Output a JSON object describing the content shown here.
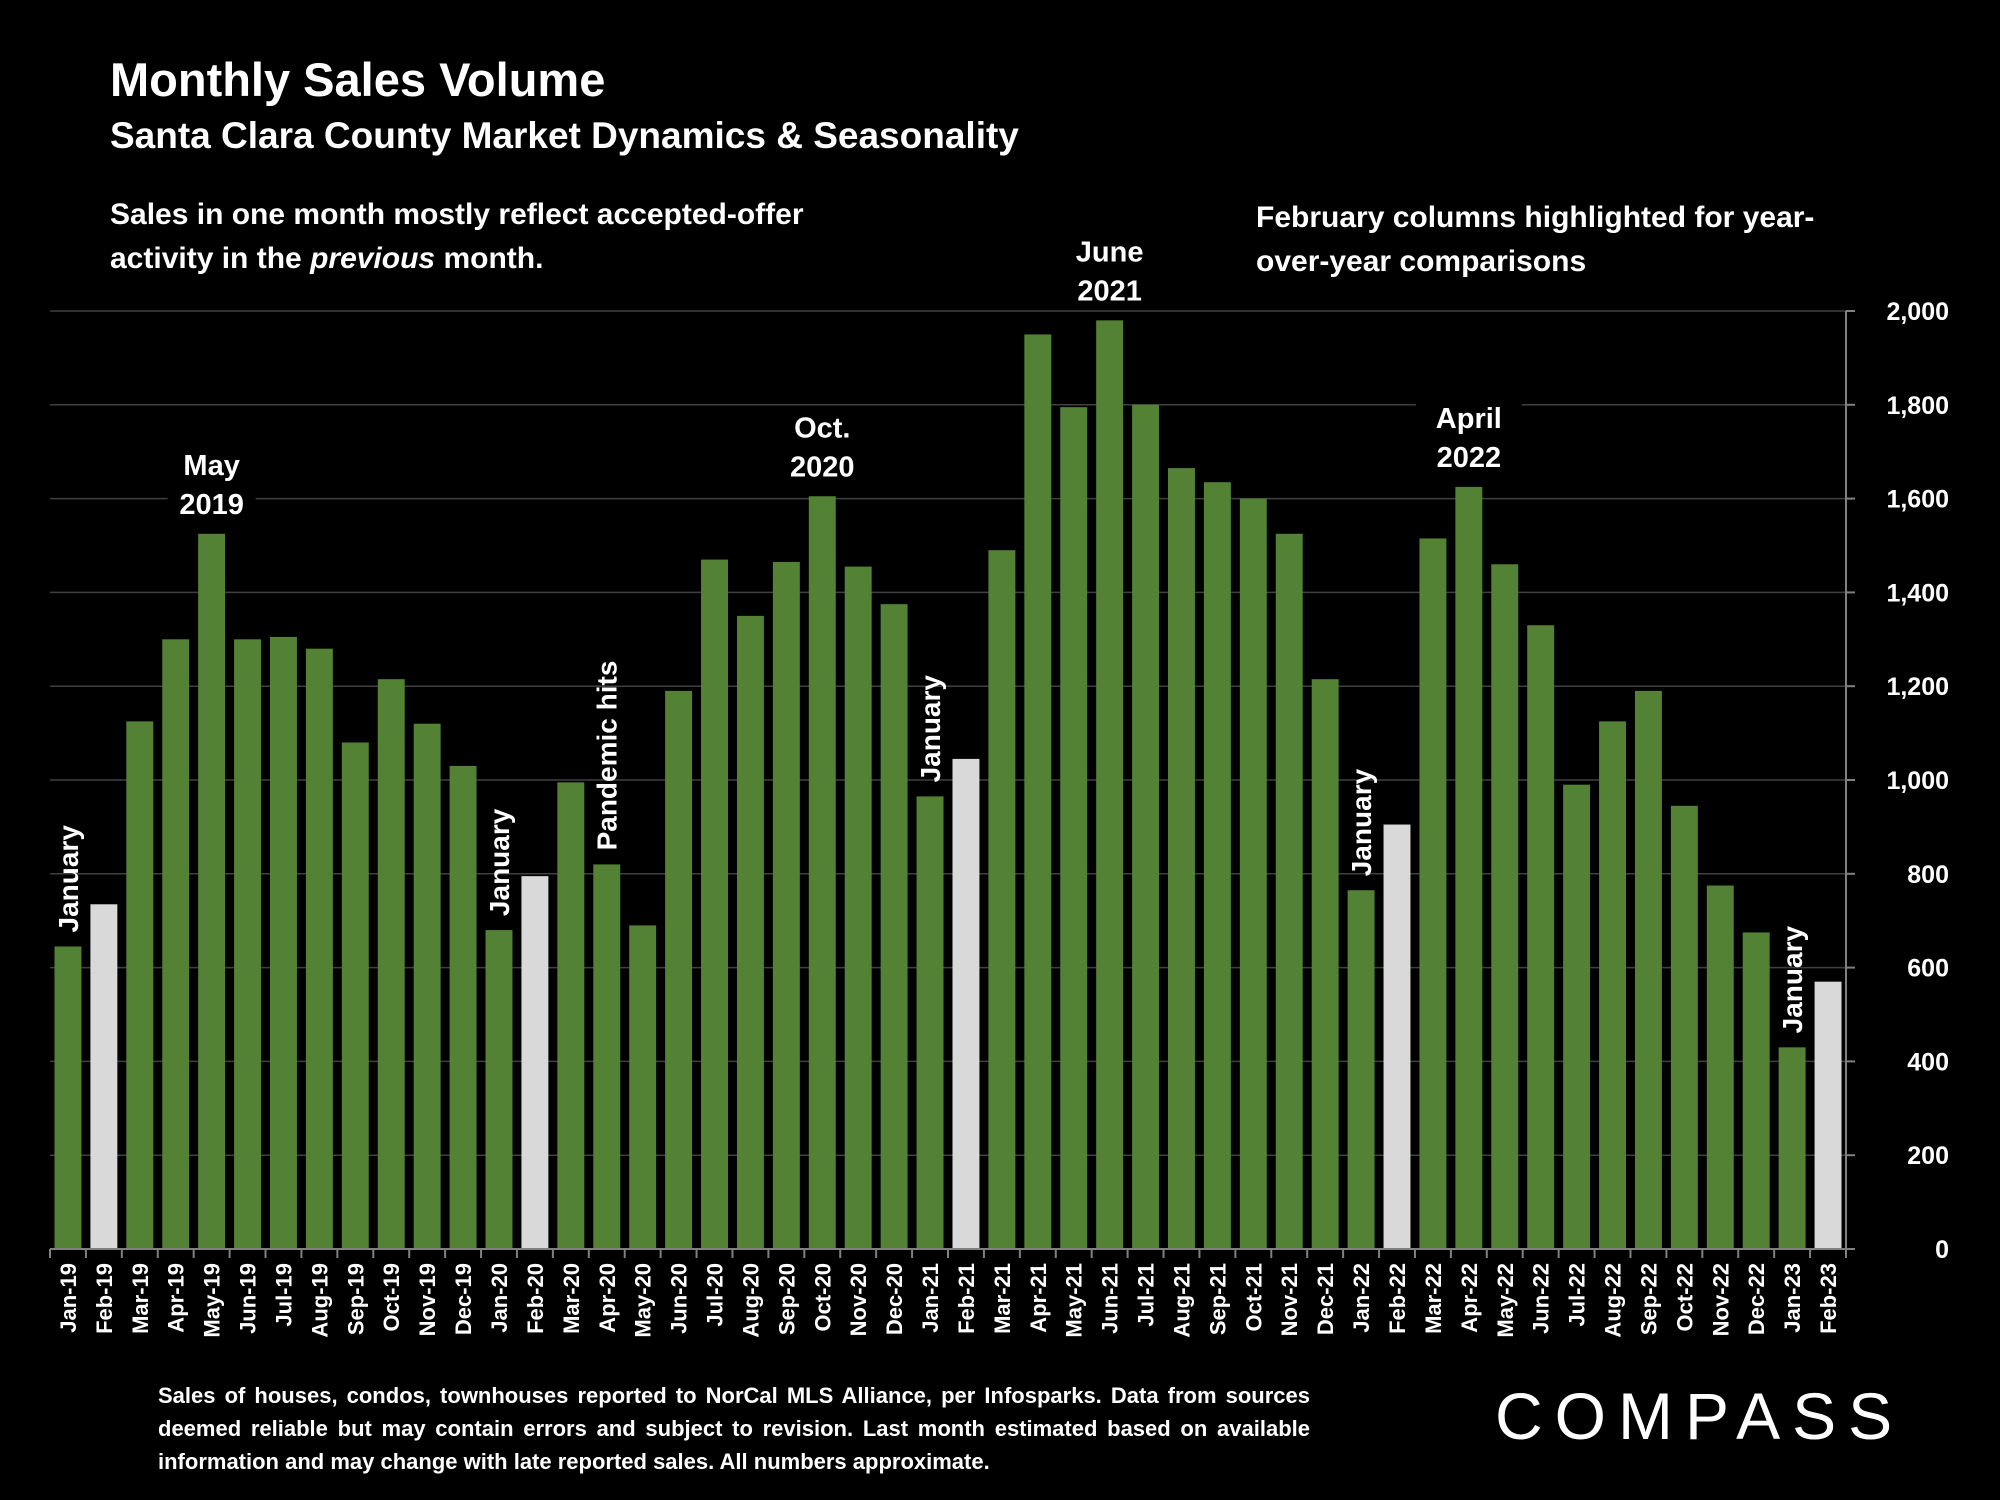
{
  "header": {
    "title": "Monthly Sales Volume",
    "subtitle": "Santa Clara County Market Dynamics & Seasonality"
  },
  "notes": {
    "left_part1": "Sales in one month mostly reflect accepted-offer activity in the ",
    "left_italic": "previous",
    "left_part2": " month.",
    "right": "February columns highlighted for year-over-year comparisons"
  },
  "footnote": "Sales of houses, condos, townhouses reported to NorCal MLS Alliance, per Infosparks. Data from sources deemed reliable but may contain errors and subject to revision. Last month estimated based on available information and may change with late reported sales. All numbers approximate.",
  "logo": "COMPASS",
  "chart_data": {
    "type": "bar",
    "title": "Monthly Sales Volume",
    "subtitle": "Santa Clara County Market Dynamics & Seasonality",
    "ylim": [
      0,
      2000
    ],
    "yticks": [
      0,
      200,
      400,
      600,
      800,
      1000,
      1200,
      1400,
      1600,
      1800,
      2000
    ],
    "ytick_labels": [
      "0",
      "200",
      "400",
      "600",
      "800",
      "1,000",
      "1,200",
      "1,400",
      "1,600",
      "1,800",
      "2,000"
    ],
    "y_axis_side": "right",
    "grid": true,
    "categories": [
      "Jan-19",
      "Feb-19",
      "Mar-19",
      "Apr-19",
      "May-19",
      "Jun-19",
      "Jul-19",
      "Aug-19",
      "Sep-19",
      "Oct-19",
      "Nov-19",
      "Dec-19",
      "Jan-20",
      "Feb-20",
      "Mar-20",
      "Apr-20",
      "May-20",
      "Jun-20",
      "Jul-20",
      "Aug-20",
      "Sep-20",
      "Oct-20",
      "Nov-20",
      "Dec-20",
      "Jan-21",
      "Feb-21",
      "Mar-21",
      "Apr-21",
      "May-21",
      "Jun-21",
      "Jul-21",
      "Aug-21",
      "Sep-21",
      "Oct-21",
      "Nov-21",
      "Dec-21",
      "Jan-22",
      "Feb-22",
      "Mar-22",
      "Apr-22",
      "May-22",
      "Jun-22",
      "Jul-22",
      "Aug-22",
      "Sep-22",
      "Oct-22",
      "Nov-22",
      "Dec-22",
      "Jan-23",
      "Feb-23"
    ],
    "values": [
      645,
      735,
      1125,
      1300,
      1525,
      1300,
      1305,
      1280,
      1080,
      1215,
      1120,
      1030,
      680,
      795,
      995,
      820,
      690,
      1190,
      1470,
      1350,
      1465,
      1605,
      1455,
      1375,
      965,
      1045,
      1490,
      1950,
      1795,
      1980,
      1800,
      1665,
      1635,
      1600,
      1525,
      1215,
      765,
      905,
      1515,
      1625,
      1460,
      1330,
      990,
      1125,
      1190,
      945,
      775,
      675,
      430,
      570
    ],
    "highlight_indices": [
      1,
      13,
      25,
      37,
      49
    ],
    "colors": {
      "bar": "#548235",
      "highlight": "#d9d9d9",
      "grid": "#404040",
      "axis": "#808080"
    },
    "annotations": [
      {
        "text": "January",
        "index": 0,
        "orientation": "vertical"
      },
      {
        "text": "January",
        "index": 12,
        "orientation": "vertical"
      },
      {
        "text": "January",
        "index": 24,
        "orientation": "vertical"
      },
      {
        "text": "January",
        "index": 36,
        "orientation": "vertical"
      },
      {
        "text": "January",
        "index": 48,
        "orientation": "vertical"
      },
      {
        "text": "Pandemic hits",
        "index": 15,
        "orientation": "vertical"
      },
      {
        "lines": [
          "May",
          "2019"
        ],
        "index": 4,
        "orientation": "horizontal"
      },
      {
        "lines": [
          "Oct.",
          "2020"
        ],
        "index": 21,
        "orientation": "horizontal"
      },
      {
        "lines": [
          "June",
          "2021"
        ],
        "index": 29,
        "orientation": "horizontal"
      },
      {
        "lines": [
          "April",
          "2022"
        ],
        "index": 39,
        "orientation": "horizontal"
      }
    ]
  }
}
